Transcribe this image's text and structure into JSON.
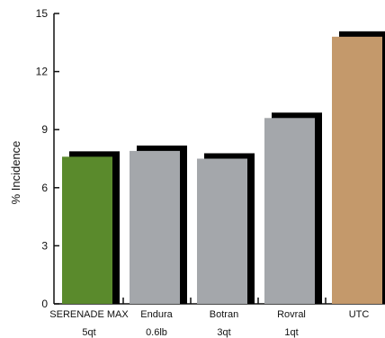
{
  "chart_data": {
    "type": "bar",
    "ylabel": "% Incidence",
    "xlabel": "",
    "ylim": [
      0,
      15
    ],
    "yticks": [
      0,
      3,
      6,
      9,
      12,
      15
    ],
    "grid": false,
    "categories": [
      [
        "SERENADE MAX",
        "5qt"
      ],
      [
        "Endura",
        "0.6lb"
      ],
      [
        "Botran",
        "3qt"
      ],
      [
        "Rovral",
        "1qt"
      ],
      [
        "UTC"
      ]
    ],
    "values": [
      7.6,
      7.9,
      7.5,
      9.6,
      13.8
    ],
    "colors": [
      "#5a8a2c",
      "#a4a7ab",
      "#a4a7ab",
      "#a4a7ab",
      "#c4996b"
    ],
    "shadow_color": "#000000"
  }
}
